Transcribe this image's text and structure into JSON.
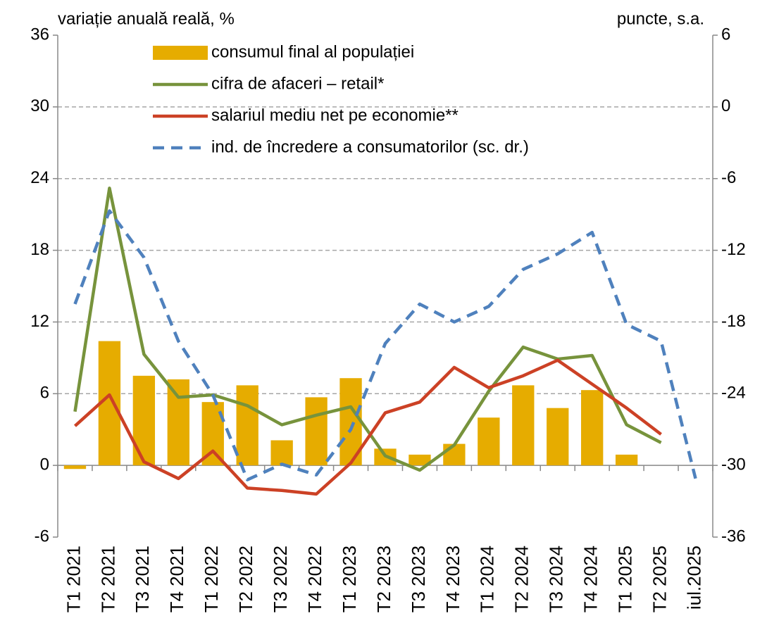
{
  "chart_data": {
    "type": "combo",
    "y_label": "variație anuală reală, %",
    "y2_label": "puncte, s.a.",
    "categories": [
      "T1 2021",
      "T2 2021",
      "T3 2021",
      "T4 2021",
      "T1 2022",
      "T2 2022",
      "T3 2022",
      "T4 2022",
      "T1 2023",
      "T2 2023",
      "T3 2023",
      "T4 2023",
      "T1 2024",
      "T2 2024",
      "T3 2024",
      "T4 2024",
      "T1 2025",
      "T2 2025",
      "iul.2025"
    ],
    "series": [
      {
        "name": "consumul final al populației",
        "type": "bar",
        "color": "#E6AC00",
        "values": [
          -0.3,
          10.4,
          7.5,
          7.2,
          5.3,
          6.7,
          2.1,
          5.7,
          7.3,
          1.4,
          0.9,
          1.8,
          4.0,
          6.7,
          4.8,
          6.3,
          0.9,
          null,
          null
        ]
      },
      {
        "name": "cifra de afaceri – retail*",
        "type": "line",
        "color": "#77933C",
        "values": [
          4.5,
          23.2,
          9.3,
          5.7,
          5.9,
          5.0,
          3.4,
          4.2,
          4.9,
          0.8,
          -0.4,
          1.7,
          6.2,
          9.9,
          8.9,
          9.2,
          3.4,
          1.9,
          null
        ]
      },
      {
        "name": "salariul mediu net pe economie**",
        "type": "line",
        "color": "#CC4125",
        "values": [
          3.3,
          5.9,
          0.3,
          -1.1,
          1.2,
          -1.9,
          -2.1,
          -2.4,
          0.2,
          4.4,
          5.3,
          8.2,
          6.5,
          7.5,
          8.8,
          6.8,
          4.8,
          2.6,
          null
        ]
      },
      {
        "name": "ind. de încredere a consumatorilor (sc. dr.)",
        "type": "line",
        "dashed": true,
        "axis": "y2",
        "color": "#4F81BD",
        "values": [
          -16.5,
          -8.7,
          -12.6,
          -19.6,
          -24.1,
          -31.2,
          -29.9,
          -30.8,
          -27.0,
          -19.8,
          -16.5,
          -18.0,
          -16.7,
          -13.6,
          -12.3,
          -10.5,
          -18.2,
          -19.6,
          -31.1
        ]
      }
    ],
    "ylim": [
      -6,
      36
    ],
    "yticks": [
      -6,
      0,
      6,
      12,
      18,
      24,
      30,
      36
    ],
    "y2lim": [
      -36,
      6
    ],
    "y2ticks": [
      -36,
      -30,
      -24,
      -18,
      -12,
      -6,
      0,
      6
    ],
    "grid": true
  }
}
